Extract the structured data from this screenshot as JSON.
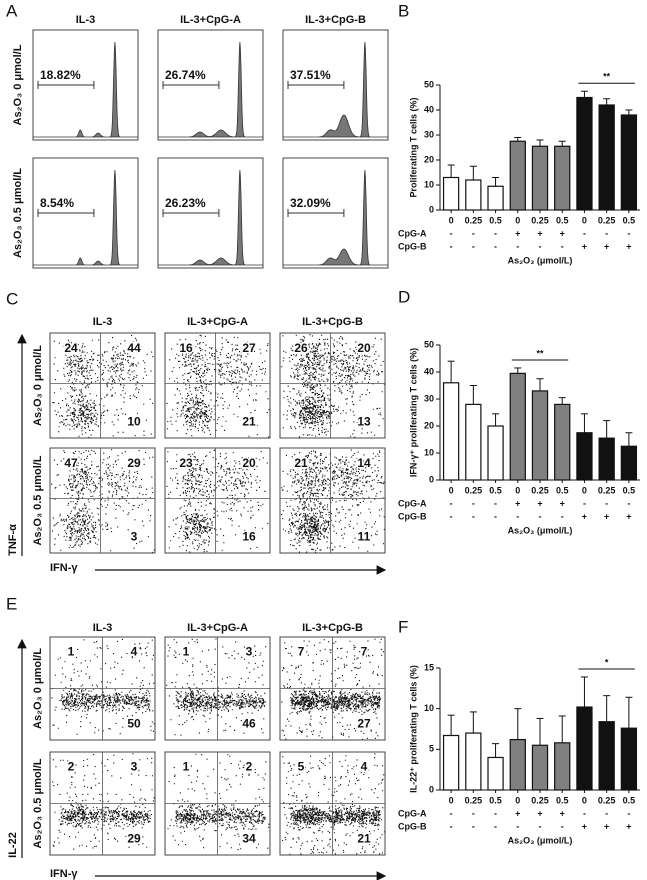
{
  "panel_a": {
    "letter": "A",
    "columns": [
      "IL-3",
      "IL-3+CpG-A",
      "IL-3+CpG-B"
    ],
    "rows": [
      "As₂O₃ 0 μmol/L",
      "As₂O₃ 0.5 μmol/L"
    ],
    "percentages": [
      [
        "18.82%",
        "26.74%",
        "37.51%"
      ],
      [
        "8.54%",
        "26.23%",
        "32.09%"
      ]
    ]
  },
  "panel_c": {
    "letter": "C",
    "columns": [
      "IL-3",
      "IL-3+CpG-A",
      "IL-3+CpG-B"
    ],
    "rows": [
      "As₂O₃ 0 μmol/L",
      "As₂O₃ 0.5 μmol/L"
    ],
    "quadrants": [
      [
        [
          24,
          44,
          10
        ],
        [
          16,
          27,
          21
        ],
        [
          26,
          20,
          13
        ]
      ],
      [
        [
          47,
          29,
          3
        ],
        [
          23,
          20,
          16
        ],
        [
          21,
          14,
          11
        ]
      ]
    ],
    "y_axis_label": "TNF-α",
    "x_axis_label": "IFN-γ"
  },
  "panel_e": {
    "letter": "E",
    "columns": [
      "IL-3",
      "IL-3+CpG-A",
      "IL-3+CpG-B"
    ],
    "rows": [
      "As₂O₃ 0 μmol/L",
      "As₂O₃ 0.5 μmol/L"
    ],
    "quadrants": [
      [
        [
          1,
          4,
          50
        ],
        [
          1,
          3,
          46
        ],
        [
          7,
          7,
          27
        ]
      ],
      [
        [
          2,
          3,
          29
        ],
        [
          1,
          2,
          34
        ],
        [
          5,
          4,
          21
        ]
      ]
    ],
    "y_axis_label": "IL-22",
    "x_axis_label": "IFN-γ"
  },
  "chart_data": [
    {
      "type": "bar",
      "letter": "B",
      "ylabel": "Proliferating T cells (%)",
      "categories": [
        "0",
        "0.25",
        "0.5",
        "0",
        "0.25",
        "0.5",
        "0",
        "0.25",
        "0.5"
      ],
      "values": [
        13,
        12,
        9.5,
        27.5,
        25.5,
        25.5,
        45,
        42,
        38
      ],
      "errors": [
        5,
        5.5,
        3.5,
        1.5,
        2.5,
        2,
        2.5,
        2.5,
        2
      ],
      "colors": [
        "#ffffff",
        "#ffffff",
        "#ffffff",
        "#808080",
        "#808080",
        "#808080",
        "#111111",
        "#111111",
        "#111111"
      ],
      "ylim": [
        0,
        50
      ],
      "yticks": [
        0,
        10,
        20,
        30,
        40,
        50
      ],
      "conditions": [
        {
          "label": "CpG-A",
          "signs": [
            "-",
            "-",
            "-",
            "+",
            "+",
            "+",
            "-",
            "-",
            "-"
          ]
        },
        {
          "label": "CpG-B",
          "signs": [
            "-",
            "-",
            "-",
            "-",
            "-",
            "-",
            "+",
            "+",
            "+"
          ]
        }
      ],
      "xlabel": "As₂O₃ (μmol/L)",
      "significance": {
        "label": "**",
        "from": 6,
        "to": 8
      }
    },
    {
      "type": "bar",
      "letter": "D",
      "ylabel": "IFN-γ⁺ proliferating T cells (%)",
      "categories": [
        "0",
        "0.25",
        "0.5",
        "0",
        "0.25",
        "0.5",
        "0",
        "0.25",
        "0.5"
      ],
      "values": [
        36,
        28,
        20,
        39.5,
        33,
        28,
        17.5,
        15.5,
        12.5
      ],
      "errors": [
        8,
        7,
        4.5,
        2,
        4.5,
        2.5,
        7,
        6.5,
        5
      ],
      "colors": [
        "#ffffff",
        "#ffffff",
        "#ffffff",
        "#808080",
        "#808080",
        "#808080",
        "#111111",
        "#111111",
        "#111111"
      ],
      "ylim": [
        0,
        50
      ],
      "yticks": [
        0,
        10,
        20,
        30,
        40,
        50
      ],
      "conditions": [
        {
          "label": "CpG-A",
          "signs": [
            "-",
            "-",
            "-",
            "+",
            "+",
            "+",
            "-",
            "-",
            "-"
          ]
        },
        {
          "label": "CpG-B",
          "signs": [
            "-",
            "-",
            "-",
            "-",
            "-",
            "-",
            "+",
            "+",
            "+"
          ]
        }
      ],
      "xlabel": "As₂O₃ (μmol/L)",
      "significance": {
        "label": "**",
        "from": 3,
        "to": 5
      }
    },
    {
      "type": "bar",
      "letter": "F",
      "ylabel": "IL-22⁺ proliferating T cells (%)",
      "categories": [
        "0",
        "0.25",
        "0.5",
        "0",
        "0.25",
        "0.5",
        "0",
        "0.25",
        "0.5"
      ],
      "values": [
        6.7,
        7,
        4,
        6.2,
        5.5,
        5.8,
        10.2,
        8.4,
        7.6
      ],
      "errors": [
        2.5,
        2.6,
        1.7,
        3.8,
        3.3,
        3.3,
        3.7,
        3.2,
        3.8
      ],
      "colors": [
        "#ffffff",
        "#ffffff",
        "#ffffff",
        "#808080",
        "#808080",
        "#808080",
        "#111111",
        "#111111",
        "#111111"
      ],
      "ylim": [
        0,
        15
      ],
      "yticks": [
        0,
        5,
        10,
        15
      ],
      "conditions": [
        {
          "label": "CpG-A",
          "signs": [
            "-",
            "-",
            "-",
            "+",
            "+",
            "+",
            "-",
            "-",
            "-"
          ]
        },
        {
          "label": "CpG-B",
          "signs": [
            "-",
            "-",
            "-",
            "-",
            "-",
            "-",
            "+",
            "+",
            "+"
          ]
        }
      ],
      "xlabel": "As₂O₃ (μmol/L)",
      "significance": {
        "label": "*",
        "from": 6,
        "to": 8
      }
    }
  ]
}
